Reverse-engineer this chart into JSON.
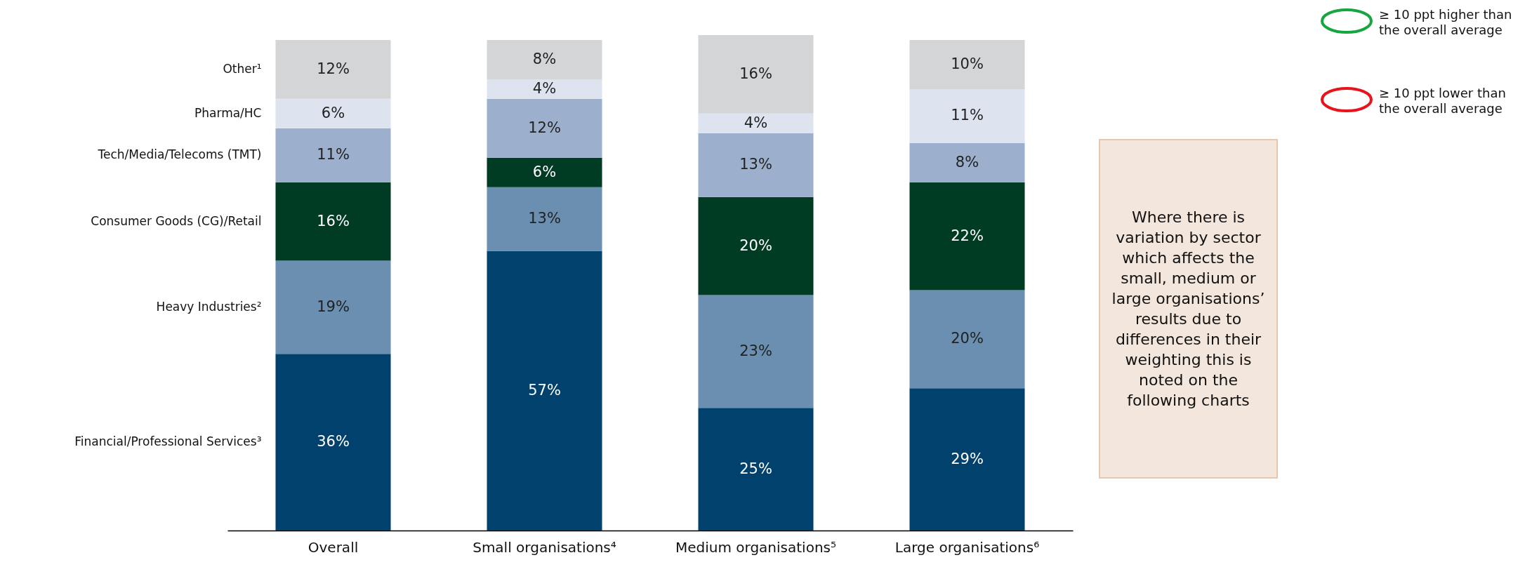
{
  "chart_data": {
    "type": "bar",
    "stacked": true,
    "categories": [
      "Overall",
      "Small organisations⁴",
      "Medium organisations⁵",
      "Large organisations⁶"
    ],
    "series": [
      {
        "name": "Financial/Professional Services³",
        "color": "#00416e",
        "values": [
          36,
          57,
          25,
          29
        ],
        "value_labels": [
          "36%",
          "57%",
          "25%",
          "29%"
        ]
      },
      {
        "name": "Heavy Industries²",
        "color": "#6a8fb1",
        "values": [
          19,
          13,
          23,
          20
        ],
        "value_labels": [
          "19%",
          "13%",
          "23%",
          "20%"
        ]
      },
      {
        "name": "Consumer Goods (CG)/Retail",
        "color": "#003b24",
        "values": [
          16,
          6,
          20,
          22
        ],
        "value_labels": [
          "16%",
          "6%",
          "20%",
          "22%"
        ]
      },
      {
        "name": "Tech/Media/Telecoms (TMT)",
        "color": "#9cb0cd",
        "values": [
          11,
          12,
          13,
          8
        ],
        "value_labels": [
          "11%",
          "12%",
          "13%",
          "8%"
        ]
      },
      {
        "name": "Pharma/HC",
        "color": "#dde4ef",
        "values": [
          6,
          4,
          4,
          11
        ],
        "value_labels": [
          "6%",
          "4%",
          "4%",
          "11%"
        ]
      },
      {
        "name": "Other¹",
        "color": "#d4d5d7",
        "values": [
          12,
          8,
          16,
          10
        ],
        "value_labels": [
          "12%",
          "8%",
          "16%",
          "10%"
        ]
      }
    ],
    "annotations": [
      "Where there is variation by sector which affects the small, medium or large organisations’ results due to differences in their weighting this is noted on the following charts",
      "≥ 10 ppt higher than the overall average",
      "≥ 10 ppt lower than the overall average"
    ],
    "grid": false
  }
}
